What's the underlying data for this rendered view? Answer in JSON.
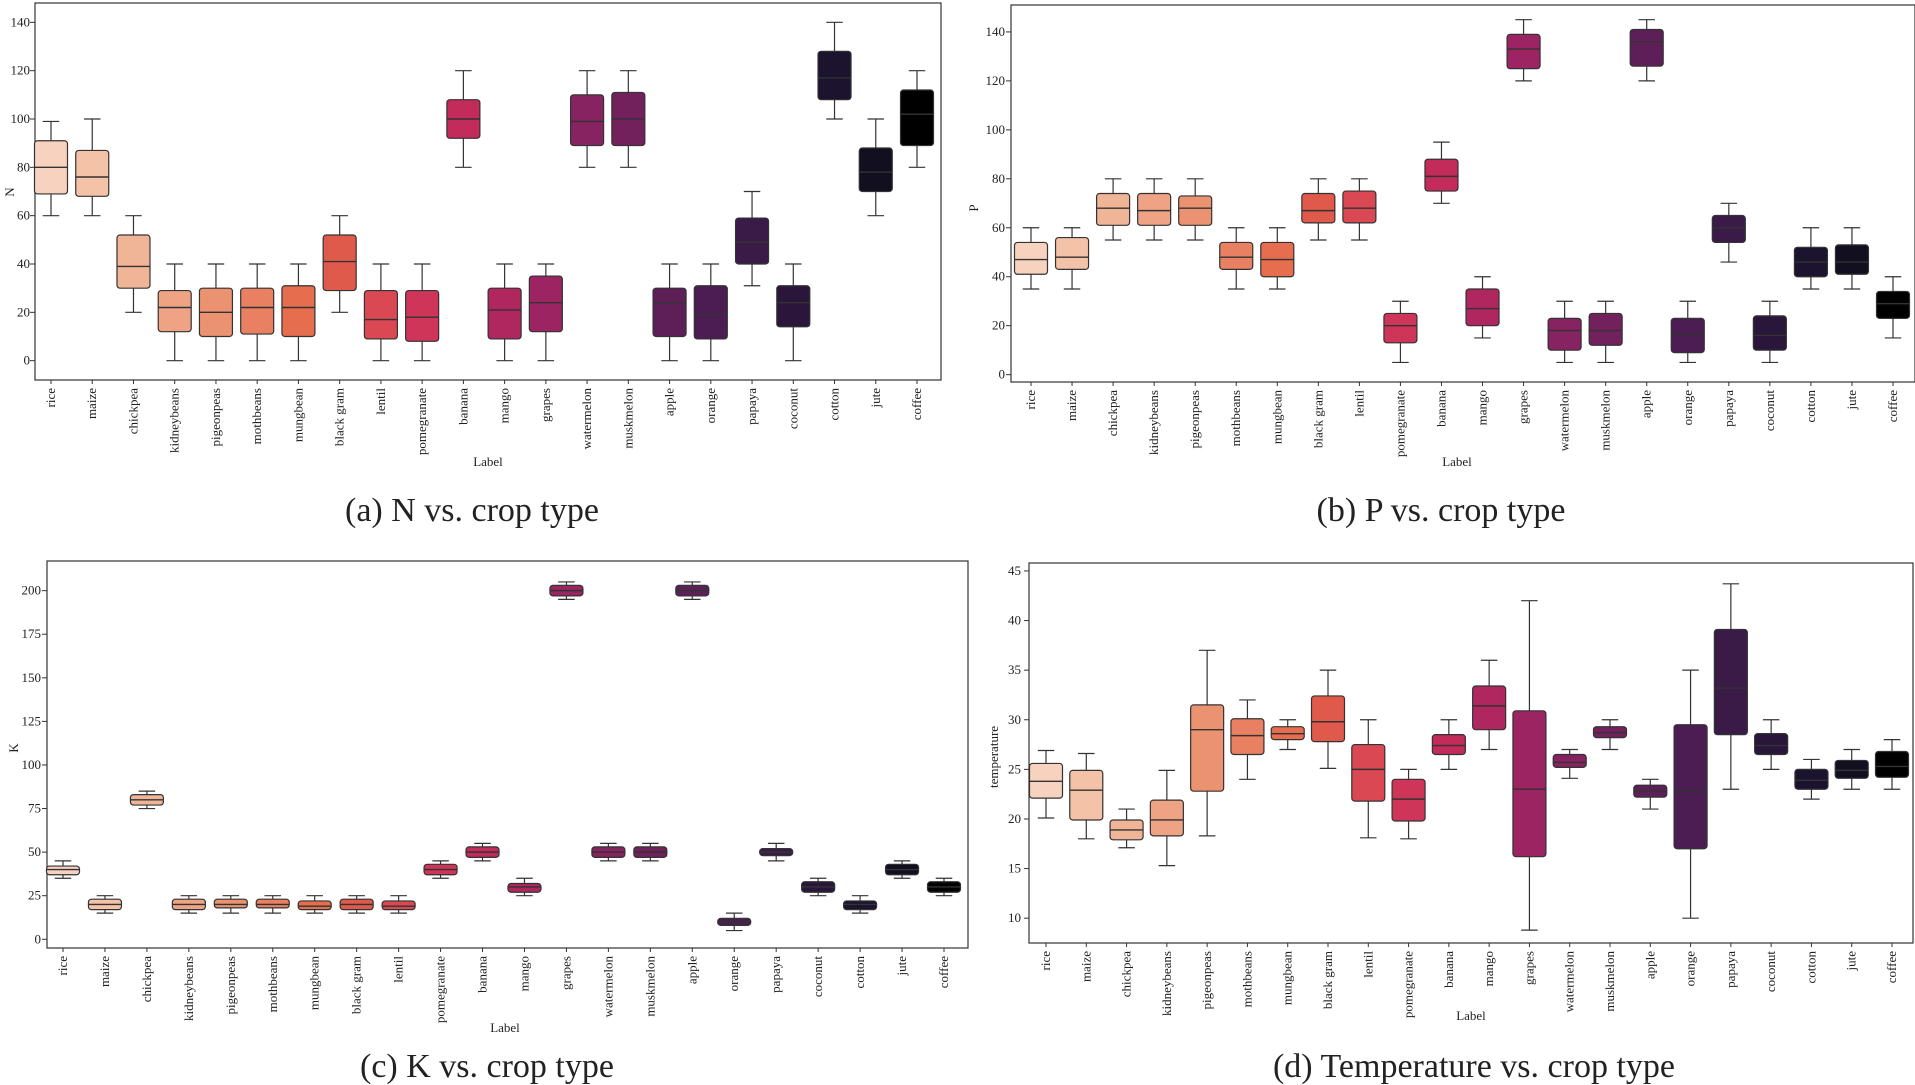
{
  "colors": [
    "#f7d3bf",
    "#f4c2a7",
    "#f0b497",
    "#eea384",
    "#eb9270",
    "#e98061",
    "#e66d4e",
    "#e05a4b",
    "#d94853",
    "#cf3559",
    "#c22b5a",
    "#b02760",
    "#9c2462",
    "#872360",
    "#73215d",
    "#5e1f58",
    "#4b1d52",
    "#3a1a47",
    "#2a163b",
    "#1c132f",
    "#110f20"
  ],
  "chart_data": [
    {
      "type": "box",
      "caption": "(a) N vs. crop type",
      "xlabel": "Label",
      "ylabel": "N",
      "ylim": [
        -8,
        148
      ],
      "yticks": [
        0,
        20,
        40,
        60,
        80,
        100,
        120,
        140
      ],
      "categories": [
        "rice",
        "maize",
        "chickpea",
        "kidneybeans",
        "pigeonpeas",
        "mothbeans",
        "mungbean",
        "black gram",
        "lentil",
        "pomegranate",
        "banana",
        "mango",
        "grapes",
        "watermelon",
        "muskmelon",
        "apple",
        "orange",
        "papaya",
        "coconut",
        "cotton",
        "jute",
        "coffee"
      ],
      "boxes": [
        [
          60,
          69,
          80,
          91,
          99
        ],
        [
          60,
          68,
          76,
          87,
          100
        ],
        [
          20,
          30,
          39,
          52,
          60
        ],
        [
          0,
          12,
          22,
          29,
          40
        ],
        [
          0,
          10,
          20,
          30,
          40
        ],
        [
          0,
          11,
          22,
          30,
          40
        ],
        [
          0,
          10,
          22,
          31,
          40
        ],
        [
          20,
          29,
          41,
          52,
          60
        ],
        [
          0,
          9,
          17,
          29,
          40
        ],
        [
          0,
          8,
          18,
          29,
          40
        ],
        [
          80,
          92,
          100,
          108,
          120
        ],
        [
          0,
          9,
          21,
          30,
          40
        ],
        [
          0,
          12,
          24,
          35,
          40
        ],
        [
          80,
          89,
          99,
          110,
          120
        ],
        [
          80,
          89,
          100,
          111,
          120
        ],
        [
          0,
          10,
          24,
          30,
          40
        ],
        [
          0,
          9,
          19,
          31,
          40
        ],
        [
          31,
          40,
          49,
          59,
          70
        ],
        [
          0,
          14,
          24,
          31,
          40
        ],
        [
          100,
          108,
          117,
          128,
          140
        ],
        [
          60,
          70,
          78,
          88,
          100
        ],
        [
          80,
          89,
          102,
          112,
          120
        ]
      ]
    },
    {
      "type": "box",
      "caption": "(b) P vs. crop type",
      "xlabel": "Label",
      "ylabel": "P",
      "ylim": [
        -3,
        151
      ],
      "yticks": [
        0,
        20,
        40,
        60,
        80,
        100,
        120,
        140
      ],
      "categories": [
        "rice",
        "maize",
        "chickpea",
        "kidneybeans",
        "pigeonpeas",
        "mothbeans",
        "mungbean",
        "black gram",
        "lentil",
        "pomegranate",
        "banana",
        "mango",
        "grapes",
        "watermelon",
        "muskmelon",
        "apple",
        "orange",
        "papaya",
        "coconut",
        "cotton",
        "jute",
        "coffee"
      ],
      "boxes": [
        [
          35,
          41,
          47,
          54,
          60
        ],
        [
          35,
          43,
          48,
          56,
          60
        ],
        [
          55,
          61,
          68,
          74,
          80
        ],
        [
          55,
          61,
          67,
          74,
          80
        ],
        [
          55,
          61,
          68,
          73,
          80
        ],
        [
          35,
          43,
          48,
          54,
          60
        ],
        [
          35,
          40,
          47,
          54,
          60
        ],
        [
          55,
          62,
          67,
          74,
          80
        ],
        [
          55,
          62,
          68,
          75,
          80
        ],
        [
          5,
          13,
          20,
          25,
          30
        ],
        [
          70,
          75,
          81,
          88,
          95
        ],
        [
          15,
          20,
          27,
          35,
          40
        ],
        [
          120,
          125,
          133,
          139,
          145
        ],
        [
          5,
          10,
          18,
          23,
          30
        ],
        [
          5,
          12,
          18,
          25,
          30
        ],
        [
          120,
          126,
          136,
          141,
          145
        ],
        [
          5,
          9,
          16,
          23,
          30
        ],
        [
          46,
          54,
          60,
          65,
          70
        ],
        [
          5,
          10,
          16,
          24,
          30
        ],
        [
          35,
          40,
          46,
          52,
          60
        ],
        [
          35,
          41,
          46,
          53,
          60
        ],
        [
          15,
          23,
          29,
          34,
          40
        ]
      ]
    },
    {
      "type": "box",
      "caption": "(c) K vs. crop type",
      "xlabel": "Label",
      "ylabel": "K",
      "ylim": [
        -5,
        217
      ],
      "yticks": [
        0,
        25,
        50,
        75,
        100,
        125,
        150,
        175,
        200
      ],
      "categories": [
        "rice",
        "maize",
        "chickpea",
        "kidneybeans",
        "pigeonpeas",
        "mothbeans",
        "mungbean",
        "black gram",
        "lentil",
        "pomegranate",
        "banana",
        "mango",
        "grapes",
        "watermelon",
        "muskmelon",
        "apple",
        "orange",
        "papaya",
        "coconut",
        "cotton",
        "jute",
        "coffee"
      ],
      "boxes": [
        [
          35,
          37,
          40,
          42,
          45
        ],
        [
          15,
          17,
          20,
          23,
          25
        ],
        [
          75,
          77,
          80,
          83,
          85
        ],
        [
          15,
          17,
          20,
          23,
          25
        ],
        [
          15,
          18,
          20,
          23,
          25
        ],
        [
          15,
          18,
          20,
          23,
          25
        ],
        [
          15,
          17,
          19,
          22,
          25
        ],
        [
          15,
          17,
          20,
          23,
          25
        ],
        [
          15,
          17,
          19,
          22,
          25
        ],
        [
          35,
          37,
          40,
          43,
          45
        ],
        [
          45,
          47,
          50,
          53,
          55
        ],
        [
          25,
          27,
          30,
          32,
          35
        ],
        [
          195,
          197,
          200,
          203,
          205
        ],
        [
          45,
          47,
          50,
          53,
          55
        ],
        [
          45,
          47,
          50,
          53,
          55
        ],
        [
          195,
          197,
          200,
          203,
          205
        ],
        [
          5,
          8,
          10,
          12,
          15
        ],
        [
          45,
          48,
          50,
          52,
          55
        ],
        [
          25,
          27,
          30,
          33,
          35
        ],
        [
          15,
          17,
          20,
          22,
          25
        ],
        [
          35,
          37,
          40,
          43,
          45
        ],
        [
          25,
          27,
          30,
          33,
          35
        ]
      ]
    },
    {
      "type": "box",
      "caption": "(d) Temperature vs. crop type",
      "xlabel": "Label",
      "ylabel": "temperature",
      "ylim": [
        7.5,
        45.8
      ],
      "yticks": [
        10,
        15,
        20,
        25,
        30,
        35,
        40,
        45
      ],
      "categories": [
        "rice",
        "maize",
        "chickpea",
        "kidneybeans",
        "pigeonpeas",
        "mothbeans",
        "mungbean",
        "black gram",
        "lentil",
        "pomegranate",
        "banana",
        "mango",
        "grapes",
        "watermelon",
        "muskmelon",
        "apple",
        "orange",
        "papaya",
        "coconut",
        "cotton",
        "jute",
        "coffee"
      ],
      "boxes": [
        [
          20.1,
          22.1,
          23.8,
          25.6,
          26.9
        ],
        [
          18,
          19.9,
          22.9,
          24.9,
          26.6
        ],
        [
          17.1,
          17.9,
          18.9,
          19.9,
          21
        ],
        [
          15.3,
          18.3,
          19.9,
          21.9,
          24.9
        ],
        [
          18.3,
          22.8,
          29,
          31.5,
          37
        ],
        [
          24,
          26.5,
          28.4,
          30.1,
          32
        ],
        [
          27,
          28,
          28.6,
          29.3,
          30
        ],
        [
          25.1,
          27.8,
          29.8,
          32.4,
          35
        ],
        [
          18.1,
          21.8,
          25,
          27.5,
          30
        ],
        [
          18,
          19.8,
          22,
          24,
          25
        ],
        [
          25,
          26.5,
          27.4,
          28.5,
          30
        ],
        [
          27,
          29,
          31.4,
          33.4,
          36
        ],
        [
          8.8,
          16.2,
          23,
          30.9,
          42
        ],
        [
          24.1,
          25.2,
          25.7,
          26.5,
          27
        ],
        [
          27,
          28.2,
          28.7,
          29.3,
          30
        ],
        [
          21,
          22.2,
          22.8,
          23.4,
          24
        ],
        [
          10,
          17,
          22.8,
          29.5,
          35
        ],
        [
          23,
          28.5,
          33.2,
          39.1,
          43.7
        ],
        [
          25,
          26.5,
          27.4,
          28.6,
          30
        ],
        [
          22,
          23,
          23.9,
          25,
          26
        ],
        [
          23,
          24.1,
          24.9,
          25.9,
          27
        ],
        [
          23,
          24.2,
          25.3,
          26.8,
          28
        ]
      ]
    }
  ]
}
